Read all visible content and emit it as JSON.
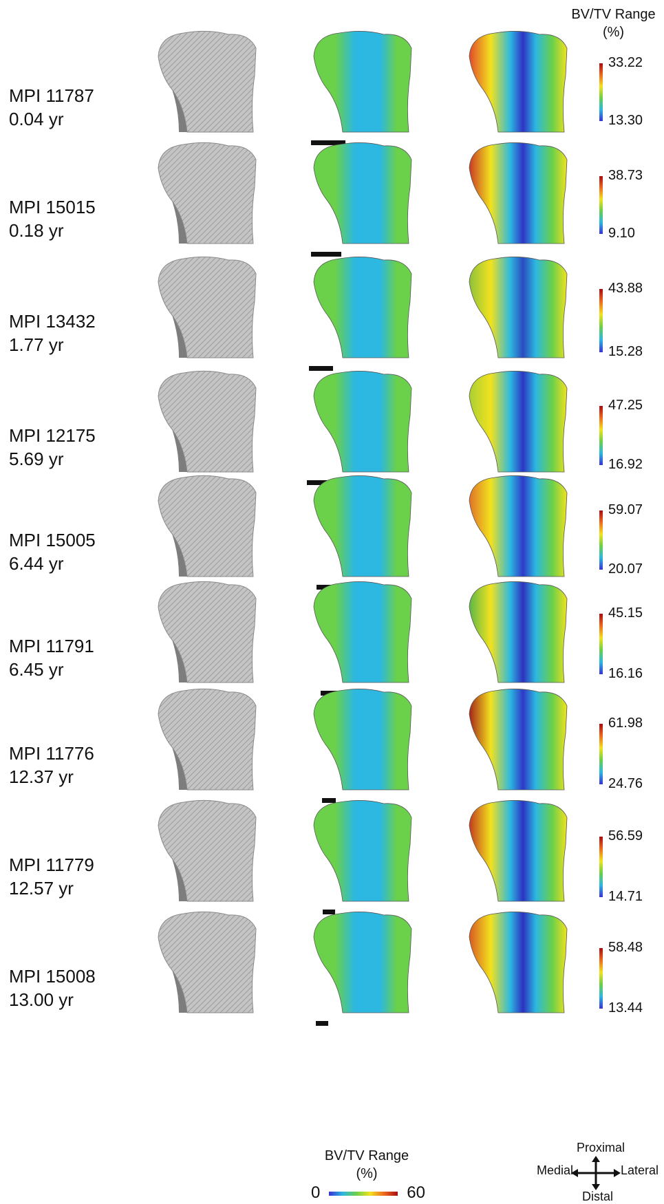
{
  "header": {
    "title_line1": "BV/TV Range",
    "title_line2": "(%)"
  },
  "specimens": [
    {
      "id": "MPI 11787",
      "age": "0.04 yr",
      "max": "33.22",
      "min": "13.30",
      "left_tone": "#e24a2a",
      "center_tone": "#2f33c5"
    },
    {
      "id": "MPI 15015",
      "age": "0.18 yr",
      "max": "38.73",
      "min": "9.10",
      "left_tone": "#c93a25",
      "center_tone": "#2e34c6"
    },
    {
      "id": "MPI 13432",
      "age": "1.77 yr",
      "max": "43.88",
      "min": "15.28",
      "left_tone": "#8cc23b",
      "center_tone": "#2b4bbf"
    },
    {
      "id": "MPI 12175",
      "age": "5.69 yr",
      "max": "47.25",
      "min": "16.92",
      "left_tone": "#a8cf34",
      "center_tone": "#2c36c4"
    },
    {
      "id": "MPI 15005",
      "age": "6.44 yr",
      "max": "59.07",
      "min": "20.07",
      "left_tone": "#e07228",
      "center_tone": "#2e3ac8"
    },
    {
      "id": "MPI 11791",
      "age": "6.45 yr",
      "max": "45.15",
      "min": "16.16",
      "left_tone": "#5ab84a",
      "center_tone": "#2d30bd"
    },
    {
      "id": "MPI 11776",
      "age": "12.37 yr",
      "max": "61.98",
      "min": "24.76",
      "left_tone": "#a5241a",
      "center_tone": "#2e38c8"
    },
    {
      "id": "MPI 11779",
      "age": "12.57 yr",
      "max": "56.59",
      "min": "14.71",
      "left_tone": "#c23a1e",
      "center_tone": "#2c32c2"
    },
    {
      "id": "MPI 15008",
      "age": "13.00 yr",
      "max": "58.48",
      "min": "13.44",
      "left_tone": "#d85a22",
      "center_tone": "#2c30c0"
    }
  ],
  "footer": {
    "title_line1": "BV/TV Range",
    "title_line2": "(%)",
    "scale_min": "0",
    "scale_max": "60"
  },
  "compass": {
    "proximal": "Proximal",
    "distal": "Distal",
    "medial": "Medial",
    "lateral": "Lateral"
  },
  "colors": {
    "bone_grey": "#c4c4c4",
    "bone_shadow": "#7d7d7d",
    "colormap": [
      "#3a31d8",
      "#2cb8e0",
      "#6bd04a",
      "#f2e21e",
      "#ee6a1e",
      "#a80c12"
    ]
  }
}
